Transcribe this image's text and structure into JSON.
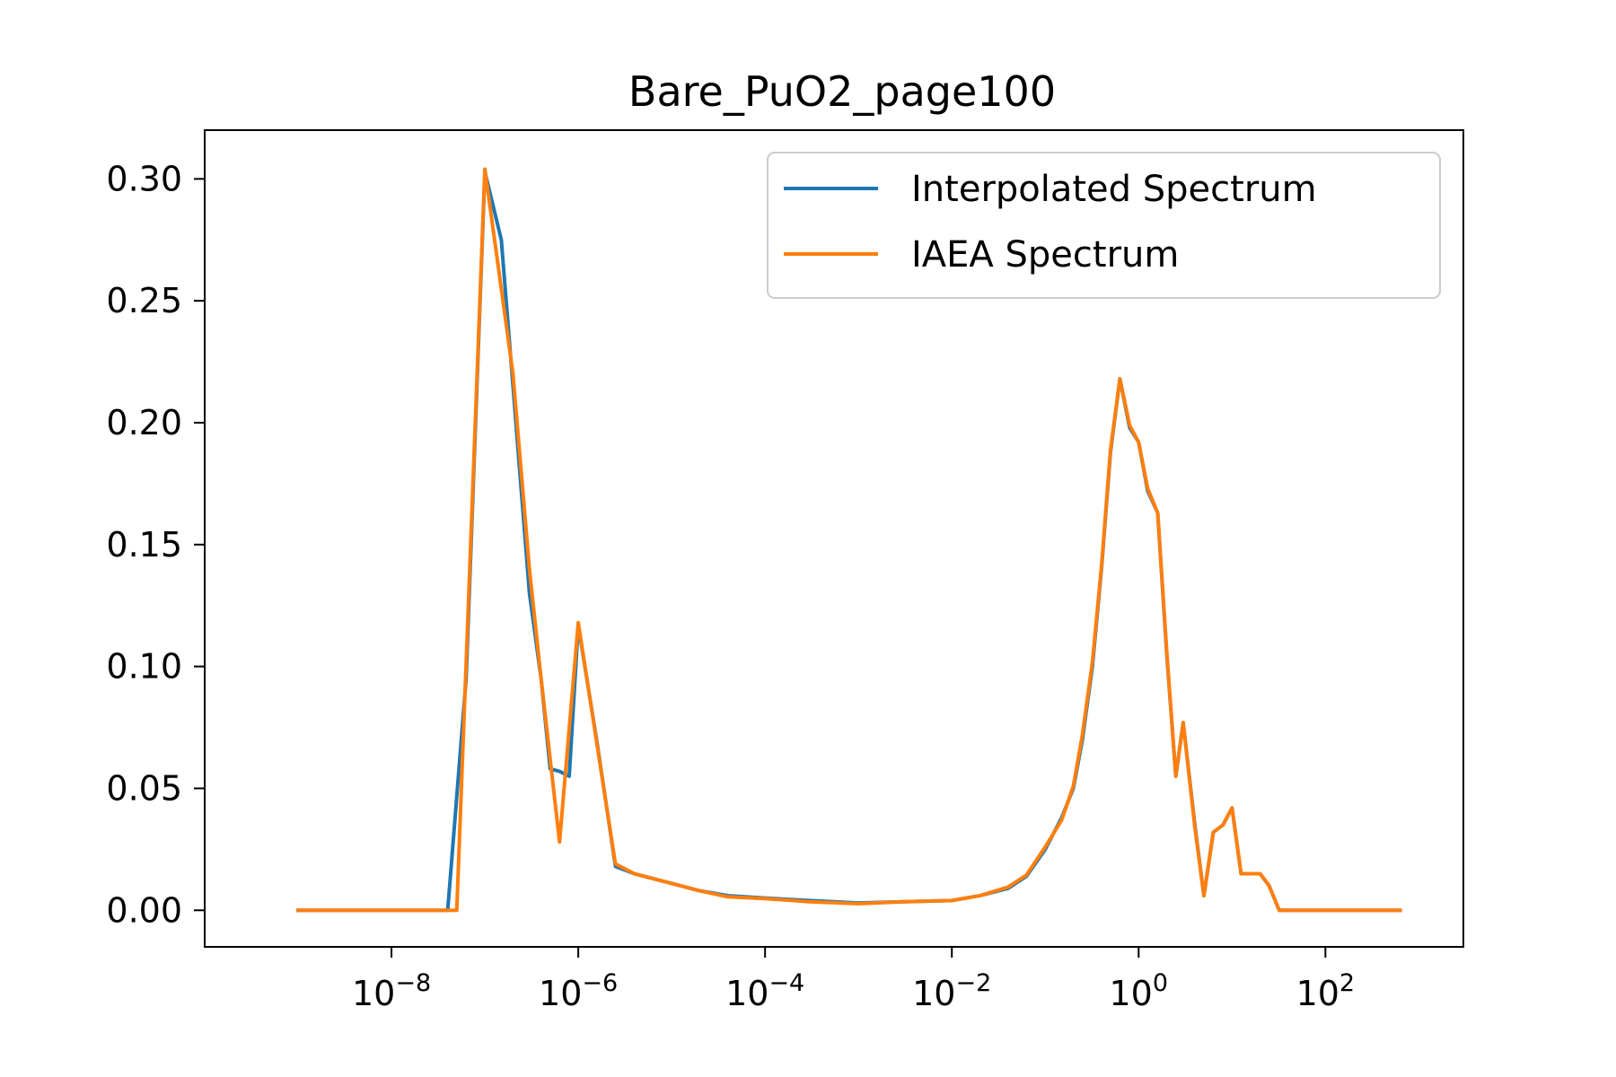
{
  "chart_data": {
    "type": "line",
    "title": "Bare_PuO2_page100",
    "xlabel": "",
    "ylabel": "",
    "xscale": "log",
    "xlim": [
      1e-10,
      3000
    ],
    "ylim": [
      -0.015,
      0.32
    ],
    "grid": false,
    "legend_position": "top-right",
    "x_ticks": [
      {
        "value": 1e-08,
        "base": "10",
        "exp": "−8"
      },
      {
        "value": 1e-06,
        "base": "10",
        "exp": "−6"
      },
      {
        "value": 0.0001,
        "base": "10",
        "exp": "−4"
      },
      {
        "value": 0.01,
        "base": "10",
        "exp": "−2"
      },
      {
        "value": 1,
        "base": "10",
        "exp": "0"
      },
      {
        "value": 100,
        "base": "10",
        "exp": "2"
      }
    ],
    "y_ticks": [
      {
        "value": 0.0,
        "label": "0.00"
      },
      {
        "value": 0.05,
        "label": "0.05"
      },
      {
        "value": 0.1,
        "label": "0.10"
      },
      {
        "value": 0.15,
        "label": "0.15"
      },
      {
        "value": 0.2,
        "label": "0.20"
      },
      {
        "value": 0.25,
        "label": "0.25"
      },
      {
        "value": 0.3,
        "label": "0.30"
      }
    ],
    "series": [
      {
        "name": "Interpolated Spectrum",
        "color": "#1f77b4",
        "points": [
          [
            1e-09,
            0.0
          ],
          [
            3e-09,
            0.0
          ],
          [
            1e-08,
            0.0
          ],
          [
            2.5e-08,
            0.0
          ],
          [
            4e-08,
            0.0
          ],
          [
            6.3e-08,
            0.095
          ],
          [
            1e-07,
            0.303
          ],
          [
            1.5e-07,
            0.275
          ],
          [
            2e-07,
            0.215
          ],
          [
            3e-07,
            0.13
          ],
          [
            4e-07,
            0.095
          ],
          [
            5e-07,
            0.058
          ],
          [
            6.3e-07,
            0.057
          ],
          [
            8e-07,
            0.055
          ],
          [
            1e-06,
            0.117
          ],
          [
            1.6e-06,
            0.068
          ],
          [
            2.5e-06,
            0.018
          ],
          [
            4e-06,
            0.015
          ],
          [
            1e-05,
            0.011
          ],
          [
            2e-05,
            0.008
          ],
          [
            4e-05,
            0.006
          ],
          [
            0.0001,
            0.005
          ],
          [
            0.0003,
            0.004
          ],
          [
            0.001,
            0.003
          ],
          [
            0.003,
            0.0035
          ],
          [
            0.01,
            0.004
          ],
          [
            0.02,
            0.006
          ],
          [
            0.04,
            0.009
          ],
          [
            0.063,
            0.014
          ],
          [
            0.1,
            0.025
          ],
          [
            0.15,
            0.038
          ],
          [
            0.2,
            0.05
          ],
          [
            0.25,
            0.07
          ],
          [
            0.32,
            0.1
          ],
          [
            0.4,
            0.14
          ],
          [
            0.5,
            0.188
          ],
          [
            0.63,
            0.218
          ],
          [
            0.8,
            0.198
          ],
          [
            1.0,
            0.192
          ],
          [
            1.25,
            0.172
          ],
          [
            1.6,
            0.163
          ],
          [
            2.0,
            0.105
          ],
          [
            2.5,
            0.055
          ],
          [
            3.0,
            0.077
          ],
          [
            4.0,
            0.035
          ],
          [
            5.0,
            0.006
          ],
          [
            6.3,
            0.032
          ],
          [
            8.0,
            0.035
          ],
          [
            10.0,
            0.042
          ],
          [
            12.5,
            0.015
          ],
          [
            16.0,
            0.015
          ],
          [
            20.0,
            0.015
          ],
          [
            25.0,
            0.01
          ],
          [
            32.0,
            0.0
          ],
          [
            50.0,
            0.0
          ],
          [
            100.0,
            0.0
          ],
          [
            200.0,
            0.0
          ],
          [
            631.0,
            0.0
          ]
        ]
      },
      {
        "name": "IAEA Spectrum",
        "color": "#ff7f0e",
        "points": [
          [
            1e-09,
            0.0
          ],
          [
            3e-09,
            0.0
          ],
          [
            1e-08,
            0.0
          ],
          [
            2.5e-08,
            0.0
          ],
          [
            5e-08,
            0.0
          ],
          [
            1e-07,
            0.304
          ],
          [
            2e-07,
            0.22
          ],
          [
            3e-07,
            0.14
          ],
          [
            4e-07,
            0.095
          ],
          [
            6.3e-07,
            0.028
          ],
          [
            1e-06,
            0.118
          ],
          [
            2.5e-06,
            0.019
          ],
          [
            4e-06,
            0.015
          ],
          [
            1e-05,
            0.011
          ],
          [
            2e-05,
            0.008
          ],
          [
            4e-05,
            0.0055
          ],
          [
            0.0001,
            0.0048
          ],
          [
            0.0003,
            0.0035
          ],
          [
            0.001,
            0.0027
          ],
          [
            0.003,
            0.0035
          ],
          [
            0.01,
            0.004
          ],
          [
            0.02,
            0.006
          ],
          [
            0.04,
            0.0095
          ],
          [
            0.063,
            0.0145
          ],
          [
            0.1,
            0.026
          ],
          [
            0.15,
            0.037
          ],
          [
            0.2,
            0.051
          ],
          [
            0.25,
            0.072
          ],
          [
            0.32,
            0.102
          ],
          [
            0.4,
            0.141
          ],
          [
            0.5,
            0.189
          ],
          [
            0.63,
            0.218
          ],
          [
            0.8,
            0.199
          ],
          [
            1.0,
            0.192
          ],
          [
            1.25,
            0.173
          ],
          [
            1.6,
            0.163
          ],
          [
            2.0,
            0.106
          ],
          [
            2.5,
            0.055
          ],
          [
            3.0,
            0.077
          ],
          [
            4.0,
            0.034
          ],
          [
            5.0,
            0.006
          ],
          [
            6.3,
            0.032
          ],
          [
            8.0,
            0.035
          ],
          [
            10.0,
            0.042
          ],
          [
            12.5,
            0.015
          ],
          [
            16.0,
            0.015
          ],
          [
            20.0,
            0.015
          ],
          [
            25.0,
            0.01
          ],
          [
            32.0,
            0.0
          ],
          [
            50.0,
            0.0
          ],
          [
            100.0,
            0.0
          ],
          [
            200.0,
            0.0
          ],
          [
            631.0,
            0.0
          ]
        ]
      }
    ]
  }
}
